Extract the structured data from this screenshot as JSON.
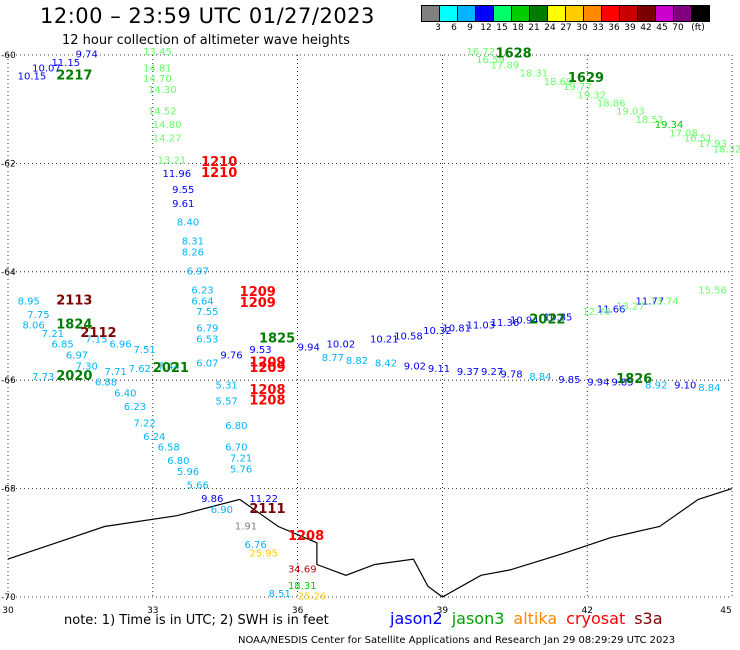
{
  "header": {
    "title": "12:00 – 23:59 UTC 01/27/2023",
    "subtitle": "12 hour collection of altimeter wave heights"
  },
  "legend": {
    "unit": "(ft)",
    "bins": [
      {
        "label": "3",
        "color": "#808080"
      },
      {
        "label": "6",
        "color": "#00ffff"
      },
      {
        "label": "9",
        "color": "#00b4ff"
      },
      {
        "label": "12",
        "color": "#0000ff"
      },
      {
        "label": "15",
        "color": "#00ff66"
      },
      {
        "label": "18",
        "color": "#00cc00"
      },
      {
        "label": "21",
        "color": "#007d00"
      },
      {
        "label": "24",
        "color": "#ffff00"
      },
      {
        "label": "27",
        "color": "#ffcc00"
      },
      {
        "label": "30",
        "color": "#ff8800"
      },
      {
        "label": "33",
        "color": "#ff0000"
      },
      {
        "label": "36",
        "color": "#c80000"
      },
      {
        "label": "39",
        "color": "#7d0000"
      },
      {
        "label": "42",
        "color": "#cc00cc"
      },
      {
        "label": "45",
        "color": "#800080"
      },
      {
        "label": "70",
        "color": "#000000"
      }
    ]
  },
  "map_data": {
    "lon_range": [
      30,
      45
    ],
    "lat_range": [
      -70,
      -60
    ],
    "lon_ticks": [
      "30",
      "33",
      "36",
      "39",
      "42",
      "45"
    ],
    "lat_ticks": [
      "-60",
      "-62",
      "-64",
      "-66",
      "-68",
      "-70"
    ],
    "grid": "dotted",
    "coastline": [
      [
        30,
        -69.3
      ],
      [
        31,
        -69.0
      ],
      [
        32,
        -68.7
      ],
      [
        33.5,
        -68.5
      ],
      [
        34.8,
        -68.2
      ],
      [
        35.6,
        -68.7
      ],
      [
        36.4,
        -69.0
      ],
      [
        36.4,
        -69.4
      ],
      [
        37.0,
        -69.6
      ],
      [
        37.6,
        -69.4
      ],
      [
        38.4,
        -69.3
      ],
      [
        38.7,
        -69.8
      ],
      [
        39.0,
        -70.0
      ],
      [
        39.8,
        -69.6
      ],
      [
        40.4,
        -69.5
      ],
      [
        41.5,
        -69.2
      ],
      [
        42.5,
        -68.9
      ],
      [
        43.5,
        -68.7
      ],
      [
        44.3,
        -68.2
      ],
      [
        45,
        -68.0
      ]
    ],
    "observations": [
      {
        "t": "9.74",
        "lon": 31.4,
        "lat": -60.05,
        "c": "#0000ff"
      },
      {
        "t": "11.15",
        "lon": 30.9,
        "lat": -60.2,
        "c": "#0000ff"
      },
      {
        "t": "10.07",
        "lon": 30.5,
        "lat": -60.3,
        "c": "#0000ff"
      },
      {
        "t": "10.15",
        "lon": 30.2,
        "lat": -60.45,
        "c": "#0000ff"
      },
      {
        "t": "13.45",
        "lon": 32.8,
        "lat": -60.0,
        "c": "#66ff66"
      },
      {
        "t": "14.81",
        "lon": 32.8,
        "lat": -60.3,
        "c": "#66ff66"
      },
      {
        "t": "14.70",
        "lon": 32.8,
        "lat": -60.5,
        "c": "#66ff66"
      },
      {
        "t": "14.30",
        "lon": 32.9,
        "lat": -60.7,
        "c": "#66ff66"
      },
      {
        "t": "14.52",
        "lon": 32.9,
        "lat": -61.1,
        "c": "#66ff66"
      },
      {
        "t": "14.80",
        "lon": 33.0,
        "lat": -61.35,
        "c": "#66ff66"
      },
      {
        "t": "14.27",
        "lon": 33.0,
        "lat": -61.6,
        "c": "#66ff66"
      },
      {
        "t": "13.21",
        "lon": 33.1,
        "lat": -62.0,
        "c": "#66ff66"
      },
      {
        "t": "11.96",
        "lon": 33.2,
        "lat": -62.25,
        "c": "#0000ff"
      },
      {
        "t": "9.55",
        "lon": 33.4,
        "lat": -62.55,
        "c": "#0000ff"
      },
      {
        "t": "9.61",
        "lon": 33.4,
        "lat": -62.8,
        "c": "#0000ff"
      },
      {
        "t": "8.40",
        "lon": 33.5,
        "lat": -63.15,
        "c": "#00b4ff"
      },
      {
        "t": "8.31",
        "lon": 33.6,
        "lat": -63.5,
        "c": "#00b4ff"
      },
      {
        "t": "8.26",
        "lon": 33.6,
        "lat": -63.7,
        "c": "#00b4ff"
      },
      {
        "t": "6.97",
        "lon": 33.7,
        "lat": -64.05,
        "c": "#00b4ff"
      },
      {
        "t": "6.23",
        "lon": 33.8,
        "lat": -64.4,
        "c": "#00b4ff"
      },
      {
        "t": "6.64",
        "lon": 33.8,
        "lat": -64.6,
        "c": "#00b4ff"
      },
      {
        "t": "7.55",
        "lon": 33.9,
        "lat": -64.8,
        "c": "#00b4ff"
      },
      {
        "t": "6.79",
        "lon": 33.9,
        "lat": -65.1,
        "c": "#00b4ff"
      },
      {
        "t": "6.53",
        "lon": 33.9,
        "lat": -65.3,
        "c": "#00b4ff"
      },
      {
        "t": "6.07",
        "lon": 33.9,
        "lat": -65.75,
        "c": "#00b4ff"
      },
      {
        "t": "5.31",
        "lon": 34.3,
        "lat": -66.15,
        "c": "#00b4ff"
      },
      {
        "t": "5.57",
        "lon": 34.3,
        "lat": -66.45,
        "c": "#00b4ff"
      },
      {
        "t": "6.80",
        "lon": 34.5,
        "lat": -66.9,
        "c": "#00b4ff"
      },
      {
        "t": "6.70",
        "lon": 34.5,
        "lat": -67.3,
        "c": "#00b4ff"
      },
      {
        "t": "7.21",
        "lon": 34.6,
        "lat": -67.5,
        "c": "#00b4ff"
      },
      {
        "t": "5.76",
        "lon": 34.6,
        "lat": -67.7,
        "c": "#00b4ff"
      },
      {
        "t": "8.95",
        "lon": 30.2,
        "lat": -64.6,
        "c": "#00b4ff"
      },
      {
        "t": "7.75",
        "lon": 30.4,
        "lat": -64.85,
        "c": "#00b4ff"
      },
      {
        "t": "8.06",
        "lon": 30.3,
        "lat": -65.05,
        "c": "#00b4ff"
      },
      {
        "t": "7.21",
        "lon": 30.7,
        "lat": -65.2,
        "c": "#00b4ff"
      },
      {
        "t": "6.85",
        "lon": 30.9,
        "lat": -65.4,
        "c": "#00b4ff"
      },
      {
        "t": "6.97",
        "lon": 31.2,
        "lat": -65.6,
        "c": "#00b4ff"
      },
      {
        "t": "7.30",
        "lon": 31.4,
        "lat": -65.8,
        "c": "#00b4ff"
      },
      {
        "t": "7.73",
        "lon": 30.5,
        "lat": -66.0,
        "c": "#00b4ff"
      },
      {
        "t": "6.88",
        "lon": 31.8,
        "lat": -66.1,
        "c": "#00b4ff"
      },
      {
        "t": "6.40",
        "lon": 32.2,
        "lat": -66.3,
        "c": "#00b4ff"
      },
      {
        "t": "6.23",
        "lon": 32.4,
        "lat": -66.55,
        "c": "#00b4ff"
      },
      {
        "t": "7.22",
        "lon": 32.6,
        "lat": -66.85,
        "c": "#00b4ff"
      },
      {
        "t": "6.24",
        "lon": 32.8,
        "lat": -67.1,
        "c": "#00b4ff"
      },
      {
        "t": "6.58",
        "lon": 33.1,
        "lat": -67.3,
        "c": "#00b4ff"
      },
      {
        "t": "6.80",
        "lon": 33.3,
        "lat": -67.55,
        "c": "#00b4ff"
      },
      {
        "t": "5.96",
        "lon": 33.5,
        "lat": -67.75,
        "c": "#00b4ff"
      },
      {
        "t": "5.66",
        "lon": 33.7,
        "lat": -68.0,
        "c": "#00b4ff"
      },
      {
        "t": "9.86",
        "lon": 34.0,
        "lat": -68.25,
        "c": "#0000ff"
      },
      {
        "t": "11.22",
        "lon": 35.0,
        "lat": -68.25,
        "c": "#0000ff"
      },
      {
        "t": "6.90",
        "lon": 34.2,
        "lat": -68.45,
        "c": "#00b4ff"
      },
      {
        "t": "1.91",
        "lon": 34.7,
        "lat": -68.75,
        "c": "#808080"
      },
      {
        "t": "6.76",
        "lon": 34.9,
        "lat": -69.1,
        "c": "#00b4ff"
      },
      {
        "t": "25.95",
        "lon": 35.0,
        "lat": -69.25,
        "c": "#ffcc00"
      },
      {
        "t": "34.69",
        "lon": 35.8,
        "lat": -69.55,
        "c": "#c80000"
      },
      {
        "t": "18.31",
        "lon": 35.8,
        "lat": -69.85,
        "c": "#00cc00"
      },
      {
        "t": "8.51",
        "lon": 35.4,
        "lat": -70.0,
        "c": "#00b4ff"
      },
      {
        "t": "25.26",
        "lon": 36.0,
        "lat": -70.05,
        "c": "#ffcc00"
      },
      {
        "t": "9.76",
        "lon": 34.4,
        "lat": -65.6,
        "c": "#0000ff"
      },
      {
        "t": "9.53",
        "lon": 35.0,
        "lat": -65.5,
        "c": "#0000ff"
      },
      {
        "t": "9.94",
        "lon": 36.0,
        "lat": -65.45,
        "c": "#0000ff"
      },
      {
        "t": "10.02",
        "lon": 36.6,
        "lat": -65.4,
        "c": "#0000ff"
      },
      {
        "t": "10.21",
        "lon": 37.5,
        "lat": -65.3,
        "c": "#0000ff"
      },
      {
        "t": "10.58",
        "lon": 38.0,
        "lat": -65.25,
        "c": "#0000ff"
      },
      {
        "t": "10.32",
        "lon": 38.6,
        "lat": -65.15,
        "c": "#0000ff"
      },
      {
        "t": "10.81",
        "lon": 39.0,
        "lat": -65.1,
        "c": "#0000ff"
      },
      {
        "t": "11.03",
        "lon": 39.5,
        "lat": -65.05,
        "c": "#0000ff"
      },
      {
        "t": "11.36",
        "lon": 40.0,
        "lat": -65.0,
        "c": "#0000ff"
      },
      {
        "t": "10.94",
        "lon": 40.4,
        "lat": -64.95,
        "c": "#0000ff"
      },
      {
        "t": "10.85",
        "lon": 41.1,
        "lat": -64.9,
        "c": "#0000ff"
      },
      {
        "t": "11.66",
        "lon": 42.2,
        "lat": -64.75,
        "c": "#0000ff"
      },
      {
        "t": "11.77",
        "lon": 43.0,
        "lat": -64.6,
        "c": "#0000ff"
      },
      {
        "t": "12.78",
        "lon": 41.9,
        "lat": -64.8,
        "c": "#66ff66"
      },
      {
        "t": "13.27",
        "lon": 42.6,
        "lat": -64.7,
        "c": "#66ff66"
      },
      {
        "t": "13.74",
        "lon": 43.3,
        "lat": -64.6,
        "c": "#66ff66"
      },
      {
        "t": "15.56",
        "lon": 44.3,
        "lat": -64.4,
        "c": "#66ff66"
      },
      {
        "t": "8.77",
        "lon": 36.5,
        "lat": -65.65,
        "c": "#00b4ff"
      },
      {
        "t": "8.82",
        "lon": 37.0,
        "lat": -65.7,
        "c": "#00b4ff"
      },
      {
        "t": "8.42",
        "lon": 37.6,
        "lat": -65.75,
        "c": "#00b4ff"
      },
      {
        "t": "9.02",
        "lon": 38.2,
        "lat": -65.8,
        "c": "#0000ff"
      },
      {
        "t": "9.11",
        "lon": 38.7,
        "lat": -65.85,
        "c": "#0000ff"
      },
      {
        "t": "9.37",
        "lon": 39.3,
        "lat": -65.9,
        "c": "#0000ff"
      },
      {
        "t": "9.27",
        "lon": 39.8,
        "lat": -65.9,
        "c": "#0000ff"
      },
      {
        "t": "9.78",
        "lon": 40.2,
        "lat": -65.95,
        "c": "#0000ff"
      },
      {
        "t": "8.84",
        "lon": 40.8,
        "lat": -66.0,
        "c": "#00b4ff"
      },
      {
        "t": "9.85",
        "lon": 41.4,
        "lat": -66.05,
        "c": "#0000ff"
      },
      {
        "t": "9.94",
        "lon": 42.0,
        "lat": -66.1,
        "c": "#0000ff"
      },
      {
        "t": "9.85",
        "lon": 42.5,
        "lat": -66.1,
        "c": "#0000ff"
      },
      {
        "t": "8.92",
        "lon": 43.2,
        "lat": -66.15,
        "c": "#00b4ff"
      },
      {
        "t": "9.10",
        "lon": 43.8,
        "lat": -66.15,
        "c": "#0000ff"
      },
      {
        "t": "8.84",
        "lon": 44.3,
        "lat": -66.2,
        "c": "#00b4ff"
      },
      {
        "t": "7.15",
        "lon": 31.6,
        "lat": -65.3,
        "c": "#00b4ff"
      },
      {
        "t": "6.96",
        "lon": 32.1,
        "lat": -65.4,
        "c": "#00b4ff"
      },
      {
        "t": "7.51",
        "lon": 32.6,
        "lat": -65.5,
        "c": "#00b4ff"
      },
      {
        "t": "7.71",
        "lon": 32.0,
        "lat": -65.9,
        "c": "#00b4ff"
      },
      {
        "t": "7.62",
        "lon": 32.5,
        "lat": -65.85,
        "c": "#00b4ff"
      },
      {
        "t": "7.44",
        "lon": 33.1,
        "lat": -65.8,
        "c": "#00b4ff"
      },
      {
        "t": "16.72",
        "lon": 39.5,
        "lat": -60.0,
        "c": "#66ff66"
      },
      {
        "t": "16.59",
        "lon": 39.7,
        "lat": -60.15,
        "c": "#66ff66"
      },
      {
        "t": "17.89",
        "lon": 40.0,
        "lat": -60.25,
        "c": "#66ff66"
      },
      {
        "t": "18.31",
        "lon": 40.6,
        "lat": -60.4,
        "c": "#66ff66"
      },
      {
        "t": "18.69",
        "lon": 41.1,
        "lat": -60.55,
        "c": "#66ff66"
      },
      {
        "t": "19.77",
        "lon": 41.5,
        "lat": -60.65,
        "c": "#66ff66"
      },
      {
        "t": "19.32",
        "lon": 41.8,
        "lat": -60.8,
        "c": "#66ff66"
      },
      {
        "t": "18.86",
        "lon": 42.2,
        "lat": -60.95,
        "c": "#66ff66"
      },
      {
        "t": "19.03",
        "lon": 42.6,
        "lat": -61.1,
        "c": "#66ff66"
      },
      {
        "t": "18.51",
        "lon": 43.0,
        "lat": -61.25,
        "c": "#66ff66"
      },
      {
        "t": "19.34",
        "lon": 43.4,
        "lat": -61.35,
        "c": "#00cc00"
      },
      {
        "t": "17.08",
        "lon": 43.7,
        "lat": -61.5,
        "c": "#66ff66"
      },
      {
        "t": "16.51",
        "lon": 44.0,
        "lat": -61.6,
        "c": "#66ff66"
      },
      {
        "t": "17.93",
        "lon": 44.3,
        "lat": -61.7,
        "c": "#66ff66"
      },
      {
        "t": "18.32",
        "lon": 44.6,
        "lat": -61.8,
        "c": "#66ff66"
      }
    ],
    "passes": [
      {
        "t": "2217",
        "lon": 31.0,
        "lat": -60.45,
        "c": "#007d00"
      },
      {
        "t": "1210",
        "lon": 34.0,
        "lat": -62.05,
        "c": "#ff0000"
      },
      {
        "t": "1210",
        "lon": 34.0,
        "lat": -62.25,
        "c": "#ff0000"
      },
      {
        "t": "2113",
        "lon": 31.0,
        "lat": -64.6,
        "c": "#7d0000"
      },
      {
        "t": "1209",
        "lon": 34.8,
        "lat": -64.45,
        "c": "#ff0000"
      },
      {
        "t": "1209",
        "lon": 34.8,
        "lat": -64.65,
        "c": "#ff0000"
      },
      {
        "t": "1824",
        "lon": 31.0,
        "lat": -65.05,
        "c": "#007d00"
      },
      {
        "t": "2112",
        "lon": 31.5,
        "lat": -65.2,
        "c": "#7d0000"
      },
      {
        "t": "1825",
        "lon": 35.2,
        "lat": -65.3,
        "c": "#007d00"
      },
      {
        "t": "1209",
        "lon": 35.0,
        "lat": -65.75,
        "c": "#ff0000"
      },
      {
        "t": "1209",
        "lon": 35.0,
        "lat": -65.85,
        "c": "#ff0000"
      },
      {
        "t": "2020",
        "lon": 31.0,
        "lat": -66.0,
        "c": "#007d00"
      },
      {
        "t": "2021",
        "lon": 33.0,
        "lat": -65.85,
        "c": "#007d00"
      },
      {
        "t": "1208",
        "lon": 35.0,
        "lat": -66.25,
        "c": "#ff0000"
      },
      {
        "t": "1208",
        "lon": 35.0,
        "lat": -66.45,
        "c": "#ff0000"
      },
      {
        "t": "2111",
        "lon": 35.0,
        "lat": -68.45,
        "c": "#7d0000"
      },
      {
        "t": "1208",
        "lon": 35.8,
        "lat": -68.95,
        "c": "#ff0000"
      },
      {
        "t": "2022",
        "lon": 40.8,
        "lat": -64.95,
        "c": "#007d00"
      },
      {
        "t": "1826",
        "lon": 42.6,
        "lat": -66.05,
        "c": "#007d00"
      },
      {
        "t": "1628",
        "lon": 40.1,
        "lat": -60.05,
        "c": "#007d00"
      },
      {
        "t": "1629",
        "lon": 41.6,
        "lat": -60.5,
        "c": "#007d00"
      }
    ]
  },
  "note": "note:  1) Time is in UTC; 2) SWH is in feet",
  "missions": [
    {
      "name": "jason2",
      "color": "#0000ff"
    },
    {
      "name": "jason3",
      "color": "#00a000"
    },
    {
      "name": "altika",
      "color": "#ff8800"
    },
    {
      "name": "cryosat",
      "color": "#ff0000"
    },
    {
      "name": "s3a",
      "color": "#7d0000"
    }
  ],
  "footer": "NOAA/NESDIS Center for Satellite Applications and Research    Jan 29 08:29:29 UTC 2023"
}
